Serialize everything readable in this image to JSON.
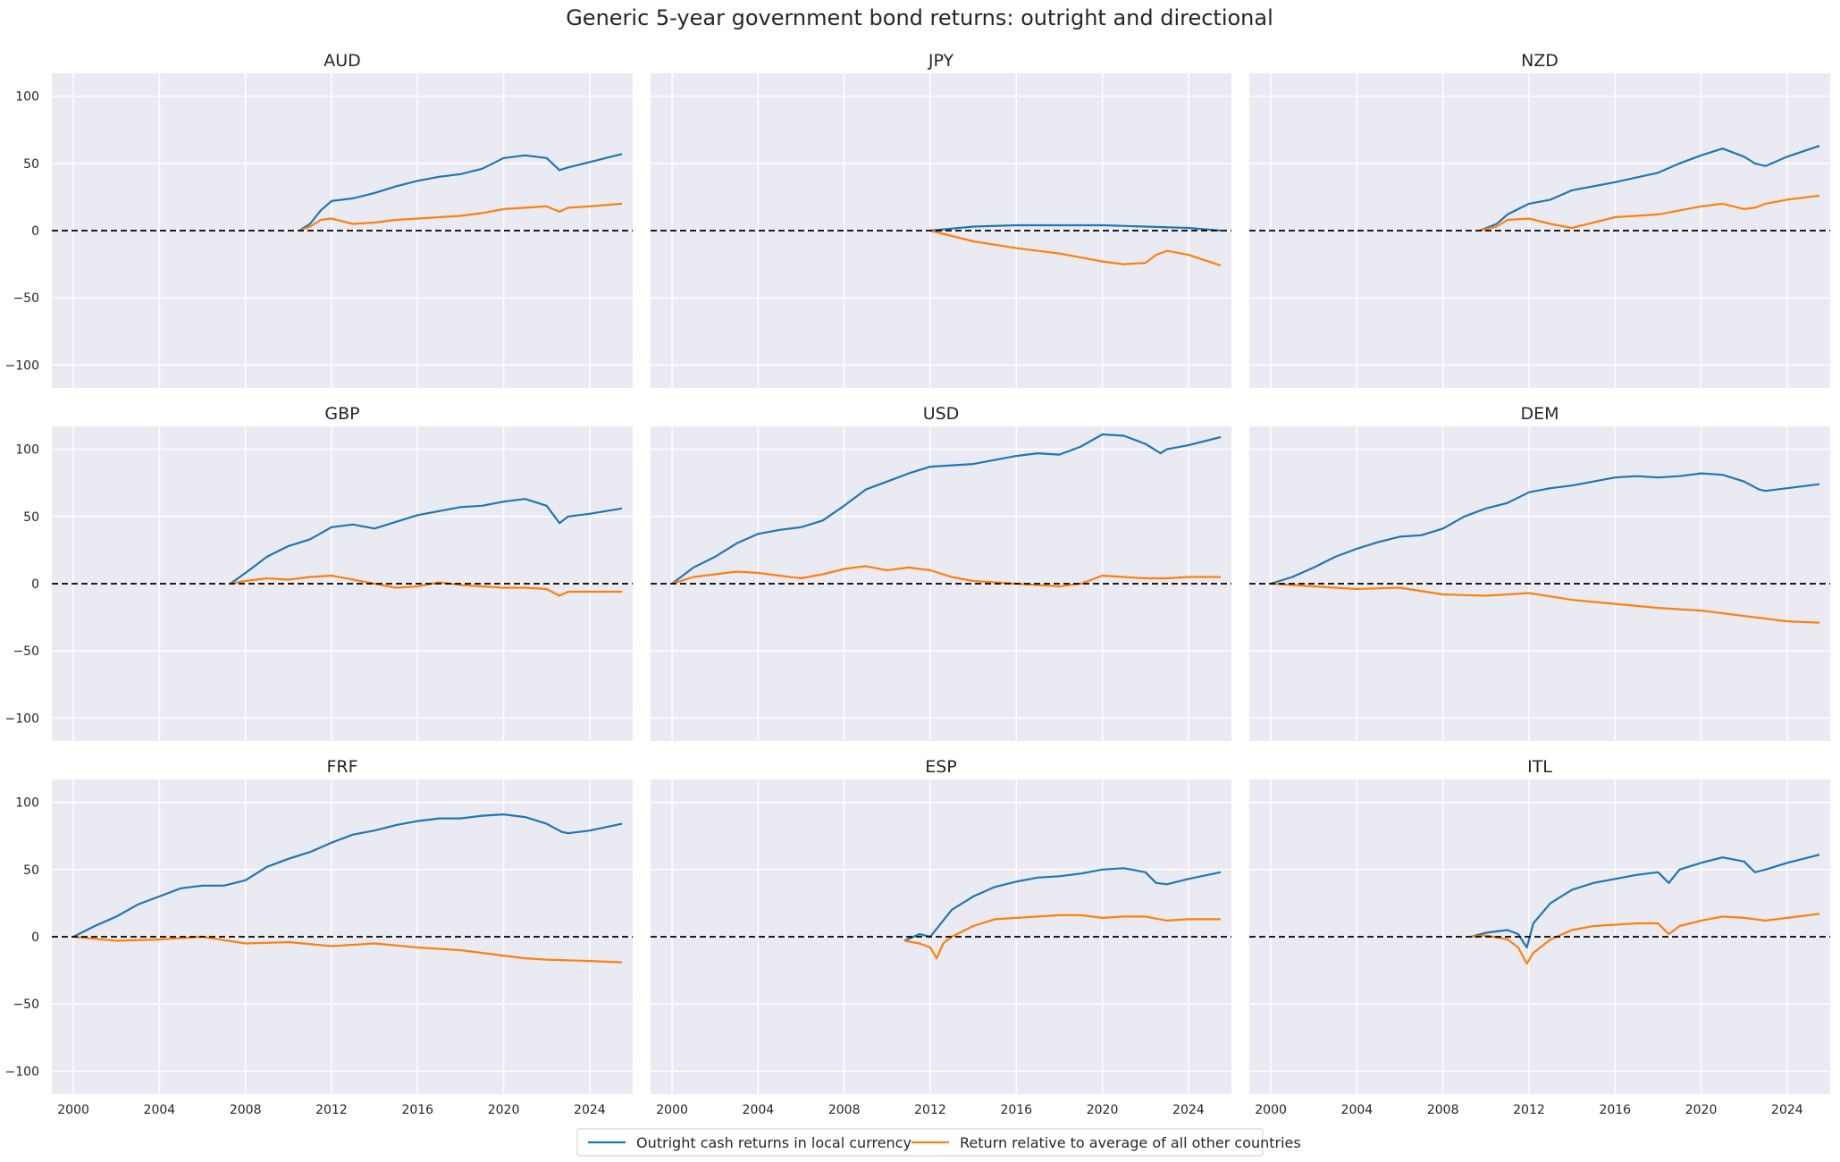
{
  "figure": {
    "title": "Generic 5-year government bond returns: outright and directional"
  },
  "colors": {
    "series1": "#1f77b4",
    "series2": "#ff7f0e",
    "panel_bg": "#eaeaf2",
    "grid": "#ffffff",
    "zero_line": "#000000"
  },
  "legend": {
    "placement": "bottom-center",
    "items": [
      "Outright cash returns in local currency",
      "Return relative to average of all other countries"
    ]
  },
  "chart_data": {
    "type": "line",
    "layout": "3x3 small multiples, shared axes",
    "xlim": [
      1999.0,
      2026.0
    ],
    "ylim": [
      -117,
      117
    ],
    "x_ticks": [
      2000,
      2004,
      2008,
      2012,
      2016,
      2020,
      2024
    ],
    "x_tick_labels": [
      "2000",
      "2004",
      "2008",
      "2012",
      "2016",
      "2020",
      "2024"
    ],
    "y_ticks": [
      100,
      50,
      0,
      -50,
      -100
    ],
    "y_tick_labels": [
      "100",
      "50",
      "0",
      "−50",
      "−100"
    ],
    "reference_line": {
      "y": 0,
      "style": "dashed"
    },
    "grid": true,
    "series_names": [
      "Outright cash returns in local currency",
      "Return relative to average of all other countries"
    ],
    "panels": [
      {
        "title": "AUD",
        "series": [
          {
            "name": "Outright cash returns in local currency",
            "x": [
              2010.5,
              2011.0,
              2011.5,
              2012.0,
              2013.0,
              2014.0,
              2015.0,
              2016.0,
              2017.0,
              2018.0,
              2019.0,
              2020.0,
              2021.0,
              2022.0,
              2022.6,
              2023.0,
              2024.0,
              2025.5
            ],
            "y": [
              0,
              5,
              15,
              22,
              24,
              28,
              33,
              37,
              40,
              42,
              46,
              54,
              56,
              54,
              45,
              47,
              51,
              57
            ]
          },
          {
            "name": "Return relative to average of all other countries",
            "x": [
              2010.5,
              2011.0,
              2011.5,
              2012.0,
              2013.0,
              2014.0,
              2015.0,
              2016.0,
              2017.0,
              2018.0,
              2019.0,
              2020.0,
              2021.0,
              2022.0,
              2022.6,
              2023.0,
              2024.0,
              2025.5
            ],
            "y": [
              0,
              3,
              8,
              9,
              5,
              6,
              8,
              9,
              10,
              11,
              13,
              16,
              17,
              18,
              14,
              17,
              18,
              20
            ]
          }
        ]
      },
      {
        "title": "JPY",
        "series": [
          {
            "name": "Outright cash returns in local currency",
            "x": [
              2012.0,
              2014.0,
              2016.0,
              2018.0,
              2020.0,
              2022.0,
              2024.0,
              2025.5
            ],
            "y": [
              0,
              3,
              4,
              4,
              4,
              3,
              2,
              0
            ]
          },
          {
            "name": "Return relative to average of all other countries",
            "x": [
              2012.0,
              2013.0,
              2014.0,
              2016.0,
              2018.0,
              2019.0,
              2020.0,
              2021.0,
              2022.0,
              2022.5,
              2023.0,
              2024.0,
              2025.5
            ],
            "y": [
              0,
              -4,
              -8,
              -13,
              -17,
              -20,
              -23,
              -25,
              -24,
              -18,
              -15,
              -18,
              -26
            ]
          }
        ]
      },
      {
        "title": "NZD",
        "series": [
          {
            "name": "Outright cash returns in local currency",
            "x": [
              2009.7,
              2010.5,
              2011.0,
              2012.0,
              2013.0,
              2014.0,
              2016.0,
              2018.0,
              2019.0,
              2020.0,
              2021.0,
              2022.0,
              2022.5,
              2023.0,
              2024.0,
              2025.5
            ],
            "y": [
              0,
              5,
              12,
              20,
              23,
              30,
              36,
              43,
              50,
              56,
              61,
              55,
              50,
              48,
              55,
              63
            ]
          },
          {
            "name": "Return relative to average of all other countries",
            "x": [
              2009.7,
              2010.5,
              2011.0,
              2012.0,
              2013.0,
              2014.0,
              2015.0,
              2016.0,
              2018.0,
              2019.0,
              2020.0,
              2021.0,
              2022.0,
              2022.5,
              2023.0,
              2024.0,
              2025.5
            ],
            "y": [
              0,
              3,
              8,
              9,
              5,
              2,
              6,
              10,
              12,
              15,
              18,
              20,
              16,
              17,
              20,
              23,
              26
            ]
          }
        ]
      },
      {
        "title": "GBP",
        "series": [
          {
            "name": "Outright cash returns in local currency",
            "x": [
              2007.3,
              2008.0,
              2009.0,
              2010.0,
              2011.0,
              2012.0,
              2013.0,
              2014.0,
              2015.0,
              2016.0,
              2017.0,
              2018.0,
              2019.0,
              2020.0,
              2021.0,
              2022.0,
              2022.6,
              2023.0,
              2024.0,
              2025.5
            ],
            "y": [
              0,
              8,
              20,
              28,
              33,
              42,
              44,
              41,
              46,
              51,
              54,
              57,
              58,
              61,
              63,
              58,
              45,
              50,
              52,
              56
            ]
          },
          {
            "name": "Return relative to average of all other countries",
            "x": [
              2007.3,
              2008.0,
              2009.0,
              2010.0,
              2011.0,
              2012.0,
              2013.0,
              2014.0,
              2015.0,
              2016.0,
              2017.0,
              2018.0,
              2019.0,
              2020.0,
              2021.0,
              2022.0,
              2022.6,
              2023.0,
              2024.0,
              2025.5
            ],
            "y": [
              0,
              2,
              4,
              3,
              5,
              6,
              3,
              0,
              -3,
              -2,
              1,
              -1,
              -2,
              -3,
              -3,
              -4,
              -9,
              -6,
              -6,
              -6
            ]
          }
        ]
      },
      {
        "title": "USD",
        "series": [
          {
            "name": "Outright cash returns in local currency",
            "x": [
              2000.0,
              2001.0,
              2002.0,
              2003.0,
              2004.0,
              2005.0,
              2006.0,
              2007.0,
              2008.0,
              2009.0,
              2010.0,
              2011.0,
              2012.0,
              2013.0,
              2014.0,
              2015.0,
              2016.0,
              2017.0,
              2018.0,
              2019.0,
              2020.0,
              2021.0,
              2022.0,
              2022.7,
              2023.0,
              2024.0,
              2025.5
            ],
            "y": [
              0,
              12,
              20,
              30,
              37,
              40,
              42,
              47,
              58,
              70,
              76,
              82,
              87,
              88,
              89,
              92,
              95,
              97,
              96,
              102,
              111,
              110,
              104,
              97,
              100,
              103,
              109
            ]
          },
          {
            "name": "Return relative to average of all other countries",
            "x": [
              2000.0,
              2001.0,
              2002.0,
              2003.0,
              2004.0,
              2005.0,
              2006.0,
              2007.0,
              2008.0,
              2009.0,
              2010.0,
              2011.0,
              2012.0,
              2013.0,
              2014.0,
              2015.0,
              2016.0,
              2017.0,
              2018.0,
              2019.0,
              2020.0,
              2021.0,
              2022.0,
              2023.0,
              2024.0,
              2025.5
            ],
            "y": [
              0,
              5,
              7,
              9,
              8,
              6,
              4,
              7,
              11,
              13,
              10,
              12,
              10,
              5,
              2,
              1,
              0,
              -1,
              -2,
              0,
              6,
              5,
              4,
              4,
              5,
              5
            ]
          }
        ]
      },
      {
        "title": "DEM",
        "series": [
          {
            "name": "Outright cash returns in local currency",
            "x": [
              2000.0,
              2001.0,
              2002.0,
              2003.0,
              2004.0,
              2005.0,
              2006.0,
              2007.0,
              2008.0,
              2009.0,
              2010.0,
              2011.0,
              2012.0,
              2013.0,
              2014.0,
              2015.0,
              2016.0,
              2017.0,
              2018.0,
              2019.0,
              2020.0,
              2021.0,
              2022.0,
              2022.7,
              2023.0,
              2024.0,
              2025.5
            ],
            "y": [
              0,
              5,
              12,
              20,
              26,
              31,
              35,
              36,
              41,
              50,
              56,
              60,
              68,
              71,
              73,
              76,
              79,
              80,
              79,
              80,
              82,
              81,
              76,
              70,
              69,
              71,
              74
            ]
          },
          {
            "name": "Return relative to average of all other countries",
            "x": [
              2000.0,
              2002.0,
              2004.0,
              2006.0,
              2008.0,
              2010.0,
              2012.0,
              2014.0,
              2016.0,
              2018.0,
              2020.0,
              2022.0,
              2024.0,
              2025.5
            ],
            "y": [
              0,
              -2,
              -4,
              -3,
              -8,
              -9,
              -7,
              -12,
              -15,
              -18,
              -20,
              -24,
              -28,
              -29
            ]
          }
        ]
      },
      {
        "title": "FRF",
        "series": [
          {
            "name": "Outright cash returns in local currency",
            "x": [
              2000.0,
              2001.0,
              2002.0,
              2003.0,
              2004.0,
              2005.0,
              2006.0,
              2007.0,
              2008.0,
              2009.0,
              2010.0,
              2011.0,
              2012.0,
              2013.0,
              2014.0,
              2015.0,
              2016.0,
              2017.0,
              2018.0,
              2019.0,
              2020.0,
              2021.0,
              2022.0,
              2022.7,
              2023.0,
              2024.0,
              2025.5
            ],
            "y": [
              0,
              8,
              15,
              24,
              30,
              36,
              38,
              38,
              42,
              52,
              58,
              63,
              70,
              76,
              79,
              83,
              86,
              88,
              88,
              90,
              91,
              89,
              84,
              78,
              77,
              79,
              84
            ]
          },
          {
            "name": "Return relative to average of all other countries",
            "x": [
              2000.0,
              2002.0,
              2004.0,
              2006.0,
              2008.0,
              2010.0,
              2012.0,
              2014.0,
              2016.0,
              2018.0,
              2020.0,
              2021.0,
              2022.0,
              2024.0,
              2025.5
            ],
            "y": [
              0,
              -3,
              -2,
              0,
              -5,
              -4,
              -7,
              -5,
              -8,
              -10,
              -14,
              -16,
              -17,
              -18,
              -19
            ]
          }
        ]
      },
      {
        "title": "ESP",
        "series": [
          {
            "name": "Outright cash returns in local currency",
            "x": [
              2010.8,
              2011.5,
              2012.0,
              2012.5,
              2013.0,
              2014.0,
              2015.0,
              2016.0,
              2017.0,
              2018.0,
              2019.0,
              2020.0,
              2021.0,
              2022.0,
              2022.5,
              2023.0,
              2024.0,
              2025.5
            ],
            "y": [
              -3,
              2,
              0,
              10,
              20,
              30,
              37,
              41,
              44,
              45,
              47,
              50,
              51,
              48,
              40,
              39,
              43,
              48
            ]
          },
          {
            "name": "Return relative to average of all other countries",
            "x": [
              2010.8,
              2011.5,
              2012.0,
              2012.3,
              2012.6,
              2013.0,
              2014.0,
              2015.0,
              2016.0,
              2017.0,
              2018.0,
              2019.0,
              2020.0,
              2021.0,
              2022.0,
              2023.0,
              2024.0,
              2025.5
            ],
            "y": [
              -3,
              -5,
              -8,
              -16,
              -5,
              0,
              8,
              13,
              14,
              15,
              16,
              16,
              14,
              15,
              15,
              12,
              13,
              13
            ]
          }
        ]
      },
      {
        "title": "ITL",
        "series": [
          {
            "name": "Outright cash returns in local currency",
            "x": [
              2009.3,
              2010.0,
              2011.0,
              2011.5,
              2011.9,
              2012.2,
              2013.0,
              2014.0,
              2015.0,
              2016.0,
              2017.0,
              2018.0,
              2018.5,
              2019.0,
              2020.0,
              2021.0,
              2022.0,
              2022.5,
              2023.0,
              2024.0,
              2025.5
            ],
            "y": [
              0,
              3,
              5,
              2,
              -8,
              10,
              25,
              35,
              40,
              43,
              46,
              48,
              40,
              50,
              55,
              59,
              56,
              48,
              50,
              55,
              61
            ]
          },
          {
            "name": "Return relative to average of all other countries",
            "x": [
              2009.3,
              2010.0,
              2011.0,
              2011.5,
              2011.9,
              2012.2,
              2013.0,
              2014.0,
              2015.0,
              2016.0,
              2017.0,
              2018.0,
              2018.5,
              2019.0,
              2020.0,
              2021.0,
              2022.0,
              2023.0,
              2024.0,
              2025.5
            ],
            "y": [
              0,
              1,
              -2,
              -8,
              -20,
              -12,
              -2,
              5,
              8,
              9,
              10,
              10,
              2,
              8,
              12,
              15,
              14,
              12,
              14,
              17
            ]
          }
        ]
      }
    ]
  }
}
